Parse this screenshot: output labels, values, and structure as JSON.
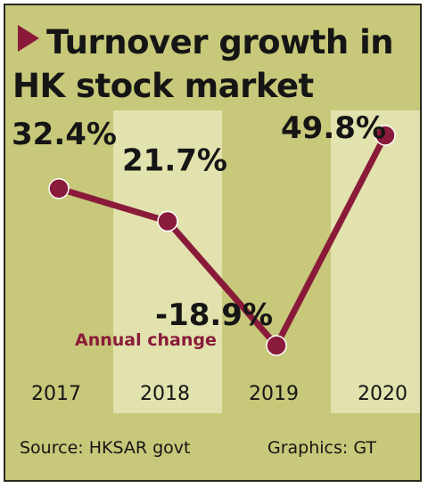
{
  "title_line_1": "Turnover growth in",
  "title_line_2": "HK stock market",
  "source": "Source: HKSAR govt",
  "credit": "Graphics: GT",
  "chart_data": {
    "type": "line",
    "title": "Turnover growth in HK stock market",
    "categories": [
      "2017",
      "2018",
      "2019",
      "2020"
    ],
    "series": [
      {
        "name": "Annual change",
        "values": [
          32.4,
          21.7,
          -18.9,
          49.8
        ]
      }
    ],
    "data_labels": [
      "32.4%",
      "21.7%",
      "-18.9%",
      "49.8%"
    ],
    "ylim": [
      -18.9,
      49.8
    ],
    "grid": false,
    "legend": "center-left"
  },
  "colors": {
    "background": "#c7c87a",
    "band_light": "#e1e2ad",
    "line": "#8a1a3a",
    "text": "#151515",
    "border": "#2a2a1a"
  }
}
